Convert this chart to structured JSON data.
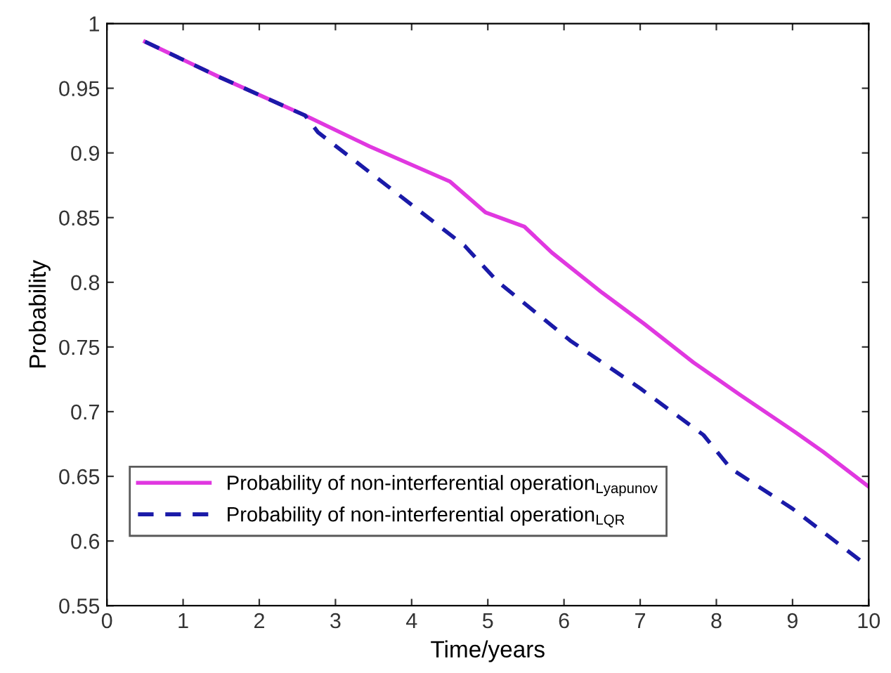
{
  "chart_data": {
    "type": "line",
    "xlabel": "Time/years",
    "ylabel": "Probability",
    "xlim": [
      0,
      10
    ],
    "xticks": [
      0,
      1,
      2,
      3,
      4,
      5,
      6,
      7,
      8,
      9,
      10
    ],
    "ylim": [
      0.55,
      1
    ],
    "yticks": [
      0.55,
      0.6,
      0.65,
      0.7,
      0.75,
      0.8,
      0.85,
      0.9,
      0.95,
      1
    ],
    "legend": "bottom left",
    "grid": false,
    "series": [
      {
        "name": "Probability of non-interferential operation$_{Lyapunov}$",
        "color": "#e038e0",
        "line_style": "solid",
        "x": [
          0.5,
          1.5,
          2.6,
          3.45,
          4.5,
          4.97,
          5.48,
          5.84,
          6.5,
          7.05,
          7.7,
          8.31,
          9.04,
          9.4,
          10
        ],
        "values": [
          0.986,
          0.958,
          0.929,
          0.905,
          0.878,
          0.854,
          0.843,
          0.823,
          0.792,
          0.768,
          0.738,
          0.713,
          0.684,
          0.669,
          0.642
        ]
      },
      {
        "name": "Probability of non-interferential operation$_{LQR}$",
        "color": "#1a1aa8",
        "line_style": "dashed",
        "x": [
          0.5,
          1.5,
          2.6,
          2.77,
          4.7,
          5.12,
          6.08,
          7.0,
          7.83,
          8.19,
          9.0,
          10
        ],
        "values": [
          0.986,
          0.958,
          0.929,
          0.916,
          0.828,
          0.801,
          0.755,
          0.718,
          0.682,
          0.656,
          0.625,
          0.58
        ]
      }
    ]
  }
}
